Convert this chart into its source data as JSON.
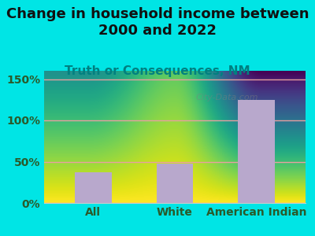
{
  "categories": [
    "All",
    "White",
    "American Indian"
  ],
  "values": [
    37,
    48,
    125
  ],
  "bar_color": "#B8A8CC",
  "title": "Change in household income between\n2000 and 2022",
  "subtitle": "Truth or Consequences, NM",
  "title_fontsize": 13,
  "subtitle_fontsize": 11,
  "ylabel_ticks": [
    0,
    50,
    100,
    150
  ],
  "ylim": [
    0,
    160
  ],
  "background_color": "#00E5E5",
  "plot_bg_top": "#e8f0d8",
  "plot_bg_bottom": "#f8f8f8",
  "grid_color": "#e8a0a0",
  "tick_label_color": "#2a5a2a",
  "title_color": "#111111",
  "subtitle_color": "#008080",
  "watermark": "City-Data.com"
}
